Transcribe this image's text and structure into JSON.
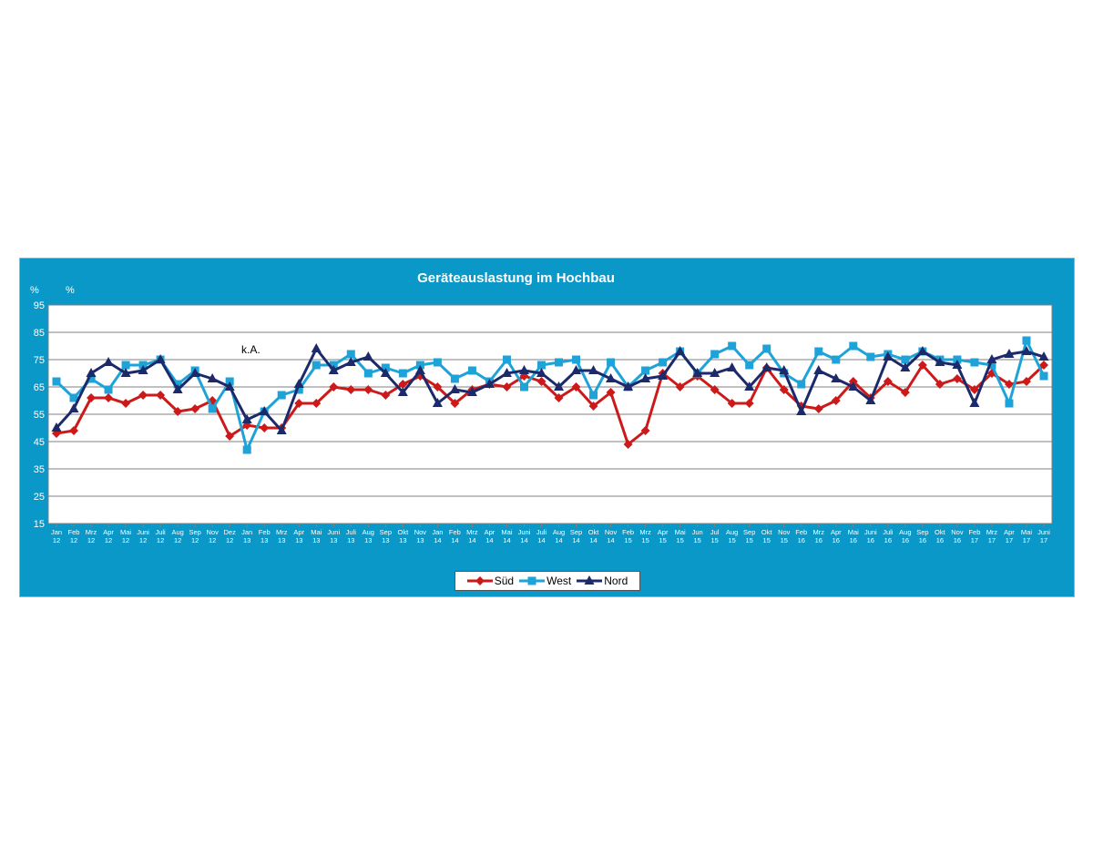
{
  "chart_data": {
    "type": "line",
    "title": "Geräteauslastung im Hochbau",
    "ylabel_left": "%",
    "ylabel_right": "%",
    "annotation": "k.A.",
    "ylim": [
      15,
      95
    ],
    "yticks": [
      15,
      25,
      35,
      45,
      55,
      65,
      75,
      85,
      95
    ],
    "grid": true,
    "legend_position": "bottom",
    "categories": [
      [
        "Jan",
        "12"
      ],
      [
        "Feb",
        "12"
      ],
      [
        "Mrz",
        "12"
      ],
      [
        "Apr",
        "12"
      ],
      [
        "Mai",
        "12"
      ],
      [
        "Juni",
        "12"
      ],
      [
        "Juli",
        "12"
      ],
      [
        "Aug",
        "12"
      ],
      [
        "Sep",
        "12"
      ],
      [
        "Nov",
        "12"
      ],
      [
        "Dez",
        "12"
      ],
      [
        "Jan",
        "13"
      ],
      [
        "Feb",
        "13"
      ],
      [
        "Mrz",
        "13"
      ],
      [
        "Apr",
        "13"
      ],
      [
        "Mai",
        "13"
      ],
      [
        "Juni",
        "13"
      ],
      [
        "Juli",
        "13"
      ],
      [
        "Aug",
        "13"
      ],
      [
        "Sep",
        "13"
      ],
      [
        "Okt",
        "13"
      ],
      [
        "Nov",
        "13"
      ],
      [
        "Jan",
        "14"
      ],
      [
        "Feb",
        "14"
      ],
      [
        "Mrz",
        "14"
      ],
      [
        "Apr",
        "14"
      ],
      [
        "Mai",
        "14"
      ],
      [
        "Juni",
        "14"
      ],
      [
        "Juli",
        "14"
      ],
      [
        "Aug",
        "14"
      ],
      [
        "Sep",
        "14"
      ],
      [
        "Okt",
        "14"
      ],
      [
        "Nov",
        "14"
      ],
      [
        "Feb",
        "15"
      ],
      [
        "Mrz",
        "15"
      ],
      [
        "Apr",
        "15"
      ],
      [
        "Mai",
        "15"
      ],
      [
        "Jun",
        "15"
      ],
      [
        "Jul",
        "15"
      ],
      [
        "Aug",
        "15"
      ],
      [
        "Sep",
        "15"
      ],
      [
        "Okt",
        "15"
      ],
      [
        "Nov",
        "15"
      ],
      [
        "Feb",
        "16"
      ],
      [
        "Mrz",
        "16"
      ],
      [
        "Apr",
        "16"
      ],
      [
        "Mai",
        "16"
      ],
      [
        "Juni",
        "16"
      ],
      [
        "Juli",
        "16"
      ],
      [
        "Aug",
        "16"
      ],
      [
        "Sep",
        "16"
      ],
      [
        "Okt",
        "16"
      ],
      [
        "Nov",
        "16"
      ],
      [
        "Feb",
        "17"
      ],
      [
        "Mrz",
        "17"
      ],
      [
        "Apr",
        "17"
      ],
      [
        "Mai",
        "17"
      ],
      [
        "Juni",
        "17"
      ]
    ],
    "series": [
      {
        "name": "Süd",
        "color": "#cc1a1a",
        "marker": "diamond",
        "values": [
          48,
          49,
          61,
          61,
          59,
          62,
          62,
          56,
          57,
          60,
          47,
          51,
          50,
          50,
          59,
          59,
          65,
          64,
          64,
          62,
          66,
          69,
          65,
          59,
          64,
          66,
          65,
          69,
          67,
          61,
          65,
          58,
          63,
          44,
          49,
          70,
          65,
          69,
          64,
          59,
          59,
          72,
          64,
          58,
          57,
          60,
          67,
          61,
          67,
          63,
          73,
          66,
          68,
          64,
          70,
          66,
          67,
          73
        ]
      },
      {
        "name": "West",
        "color": "#1ea3d8",
        "marker": "square",
        "values": [
          67,
          61,
          68,
          64,
          73,
          73,
          75,
          66,
          71,
          57,
          67,
          42,
          56,
          62,
          64,
          73,
          73,
          77,
          70,
          72,
          70,
          73,
          74,
          68,
          71,
          67,
          75,
          65,
          73,
          74,
          75,
          62,
          74,
          65,
          71,
          74,
          78,
          70,
          77,
          80,
          73,
          79,
          70,
          66,
          78,
          75,
          80,
          76,
          77,
          75,
          78,
          75,
          75,
          74,
          73,
          59,
          82,
          69
        ]
      },
      {
        "name": "Nord",
        "color": "#1c2a6b",
        "marker": "triangle",
        "values": [
          50,
          57,
          70,
          74,
          70,
          71,
          75,
          64,
          70,
          68,
          65,
          53,
          56,
          49,
          66,
          79,
          71,
          74,
          76,
          70,
          63,
          71,
          59,
          64,
          63,
          66,
          70,
          71,
          70,
          65,
          71,
          71,
          68,
          65,
          68,
          69,
          78,
          70,
          70,
          72,
          65,
          72,
          71,
          56,
          71,
          68,
          65,
          60,
          76,
          72,
          78,
          74,
          73,
          59,
          75,
          77,
          78,
          76
        ]
      }
    ]
  }
}
